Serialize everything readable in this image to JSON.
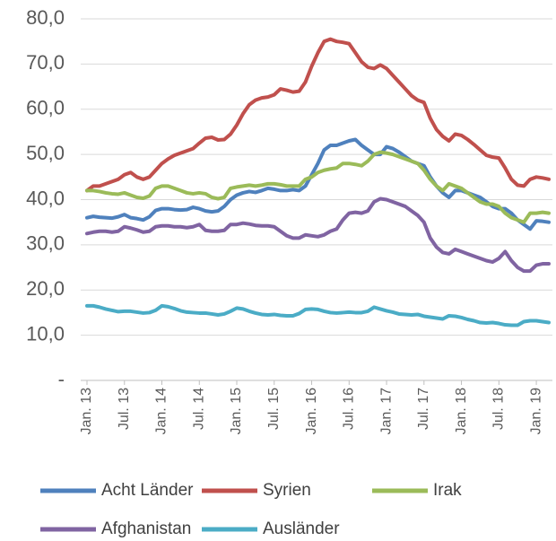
{
  "chart_data": {
    "type": "line",
    "categories": [
      "Jan. 13",
      null,
      null,
      null,
      null,
      null,
      "Jul. 13",
      null,
      null,
      null,
      null,
      null,
      "Jan. 14",
      null,
      null,
      null,
      null,
      null,
      "Jul. 14",
      null,
      null,
      null,
      null,
      null,
      "Jan. 15",
      null,
      null,
      null,
      null,
      null,
      "Jul. 15",
      null,
      null,
      null,
      null,
      null,
      "Jan. 16",
      null,
      null,
      null,
      null,
      null,
      "Jul. 16",
      null,
      null,
      null,
      null,
      null,
      "Jan. 17",
      null,
      null,
      null,
      null,
      null,
      "Jul. 17",
      null,
      null,
      null,
      null,
      null,
      "Jan. 18",
      null,
      null,
      null,
      null,
      null,
      "Jul. 18",
      null,
      null,
      null,
      null,
      null,
      "Jan. 19",
      null,
      null
    ],
    "series": [
      {
        "name": "Acht Länder",
        "color": "#4f81bd",
        "values": [
          36,
          36.3,
          36.1,
          36,
          35.9,
          36.2,
          36.7,
          36,
          35.8,
          35.5,
          36.2,
          37.6,
          38,
          38,
          37.8,
          37.7,
          37.8,
          38.3,
          38,
          37.5,
          37.3,
          37.5,
          38.5,
          40,
          41,
          41.5,
          41.8,
          41.6,
          42,
          42.5,
          42.3,
          42,
          42,
          42.2,
          42,
          43,
          45.5,
          48,
          51,
          52,
          52,
          52.5,
          53,
          53.3,
          52,
          51,
          50,
          50,
          51.7,
          51.3,
          50.5,
          49.5,
          48.5,
          48,
          47.5,
          45,
          43,
          41.5,
          40.5,
          42,
          42,
          41.5,
          41,
          40.5,
          39.5,
          38.5,
          38,
          38,
          37,
          35.5,
          34.5,
          33.5,
          35.3,
          35.2,
          35
        ]
      },
      {
        "name": "Syrien",
        "color": "#c0504d",
        "values": [
          42,
          43,
          43,
          43.5,
          44,
          44.5,
          45.5,
          46,
          45,
          44.5,
          45,
          46.5,
          48,
          49,
          49.8,
          50.3,
          50.8,
          51.3,
          52.5,
          53.6,
          53.8,
          53.2,
          53.3,
          54.5,
          56.5,
          59,
          61,
          62,
          62.5,
          62.7,
          63.2,
          64.5,
          64.2,
          63.8,
          64,
          66,
          69.5,
          72.5,
          75,
          75.5,
          75,
          74.8,
          74.5,
          72.5,
          70.5,
          69.3,
          69,
          69.8,
          69,
          67.5,
          66,
          64.5,
          63,
          62,
          61.5,
          58,
          55.5,
          54,
          53,
          54.5,
          54.2,
          53.3,
          52.2,
          51,
          49.8,
          49.4,
          49.2,
          47,
          44.5,
          43.2,
          43,
          44.5,
          45,
          44.8,
          44.5
        ]
      },
      {
        "name": "Irak",
        "color": "#9bbb59",
        "values": [
          42,
          42,
          41.8,
          41.5,
          41.3,
          41.2,
          41.5,
          41,
          40.5,
          40.3,
          40.8,
          42.5,
          43,
          43,
          42.5,
          42,
          41.5,
          41.3,
          41.5,
          41.3,
          40.5,
          40.2,
          40.5,
          42.5,
          42.8,
          43,
          43.2,
          43,
          43.2,
          43.5,
          43.5,
          43.3,
          43,
          43,
          43,
          44.5,
          45,
          46,
          46.5,
          46.8,
          47,
          48,
          48,
          47.8,
          47.5,
          48.5,
          50,
          50.5,
          50.3,
          50,
          49.5,
          49,
          48.5,
          48,
          46.5,
          44.5,
          43,
          42,
          43.5,
          43,
          42.5,
          41.5,
          40.5,
          39.5,
          39,
          39,
          38.5,
          37,
          36,
          35.5,
          35,
          37,
          37,
          37.2,
          37
        ]
      },
      {
        "name": "Afghanistan",
        "color": "#8064a2",
        "values": [
          32.5,
          32.8,
          33,
          33,
          32.8,
          33,
          34,
          33.7,
          33.3,
          32.8,
          33,
          34,
          34.2,
          34.2,
          34,
          34,
          33.8,
          34,
          34.5,
          33.2,
          33,
          33,
          33.2,
          34.5,
          34.5,
          34.8,
          34.6,
          34.3,
          34.2,
          34.2,
          34,
          33,
          32,
          31.5,
          31.5,
          32.2,
          32,
          31.8,
          32.2,
          33,
          33.5,
          35.5,
          37,
          37.2,
          37,
          37.5,
          39.5,
          40.2,
          40,
          39.5,
          39,
          38.5,
          37.5,
          36.5,
          35,
          31.5,
          29.5,
          28.3,
          28,
          29,
          28.5,
          28,
          27.5,
          27,
          26.5,
          26.2,
          27,
          28.5,
          26.5,
          25,
          24.2,
          24.2,
          25.5,
          25.8,
          25.8
        ]
      },
      {
        "name": "Ausländer",
        "color": "#4bacc6",
        "values": [
          16.5,
          16.5,
          16.2,
          15.8,
          15.5,
          15.2,
          15.3,
          15.3,
          15.1,
          14.9,
          15,
          15.5,
          16.5,
          16.3,
          15.9,
          15.4,
          15.1,
          15,
          14.9,
          14.9,
          14.7,
          14.5,
          14.7,
          15.3,
          16,
          15.8,
          15.3,
          14.9,
          14.6,
          14.5,
          14.6,
          14.4,
          14.3,
          14.3,
          14.8,
          15.7,
          15.8,
          15.7,
          15.3,
          15,
          14.9,
          15,
          15.1,
          15,
          15,
          15.3,
          16.2,
          15.8,
          15.4,
          15.1,
          14.7,
          14.6,
          14.5,
          14.6,
          14.2,
          14,
          13.8,
          13.6,
          14.3,
          14.2,
          13.9,
          13.5,
          13.2,
          12.8,
          12.7,
          12.8,
          12.6,
          12.3,
          12.2,
          12.2,
          13,
          13.2,
          13.2,
          13,
          12.8
        ]
      }
    ],
    "ylim": [
      0,
      80
    ],
    "yticks": [
      {
        "value": 0,
        "label": "-"
      },
      {
        "value": 10,
        "label": "10,0"
      },
      {
        "value": 20,
        "label": "20,0"
      },
      {
        "value": 30,
        "label": "30,0"
      },
      {
        "value": 40,
        "label": "40,0"
      },
      {
        "value": 50,
        "label": "50,0"
      },
      {
        "value": 60,
        "label": "60,0"
      },
      {
        "value": 70,
        "label": "70,0"
      },
      {
        "value": 80,
        "label": "80,0"
      }
    ],
    "grid": true
  }
}
